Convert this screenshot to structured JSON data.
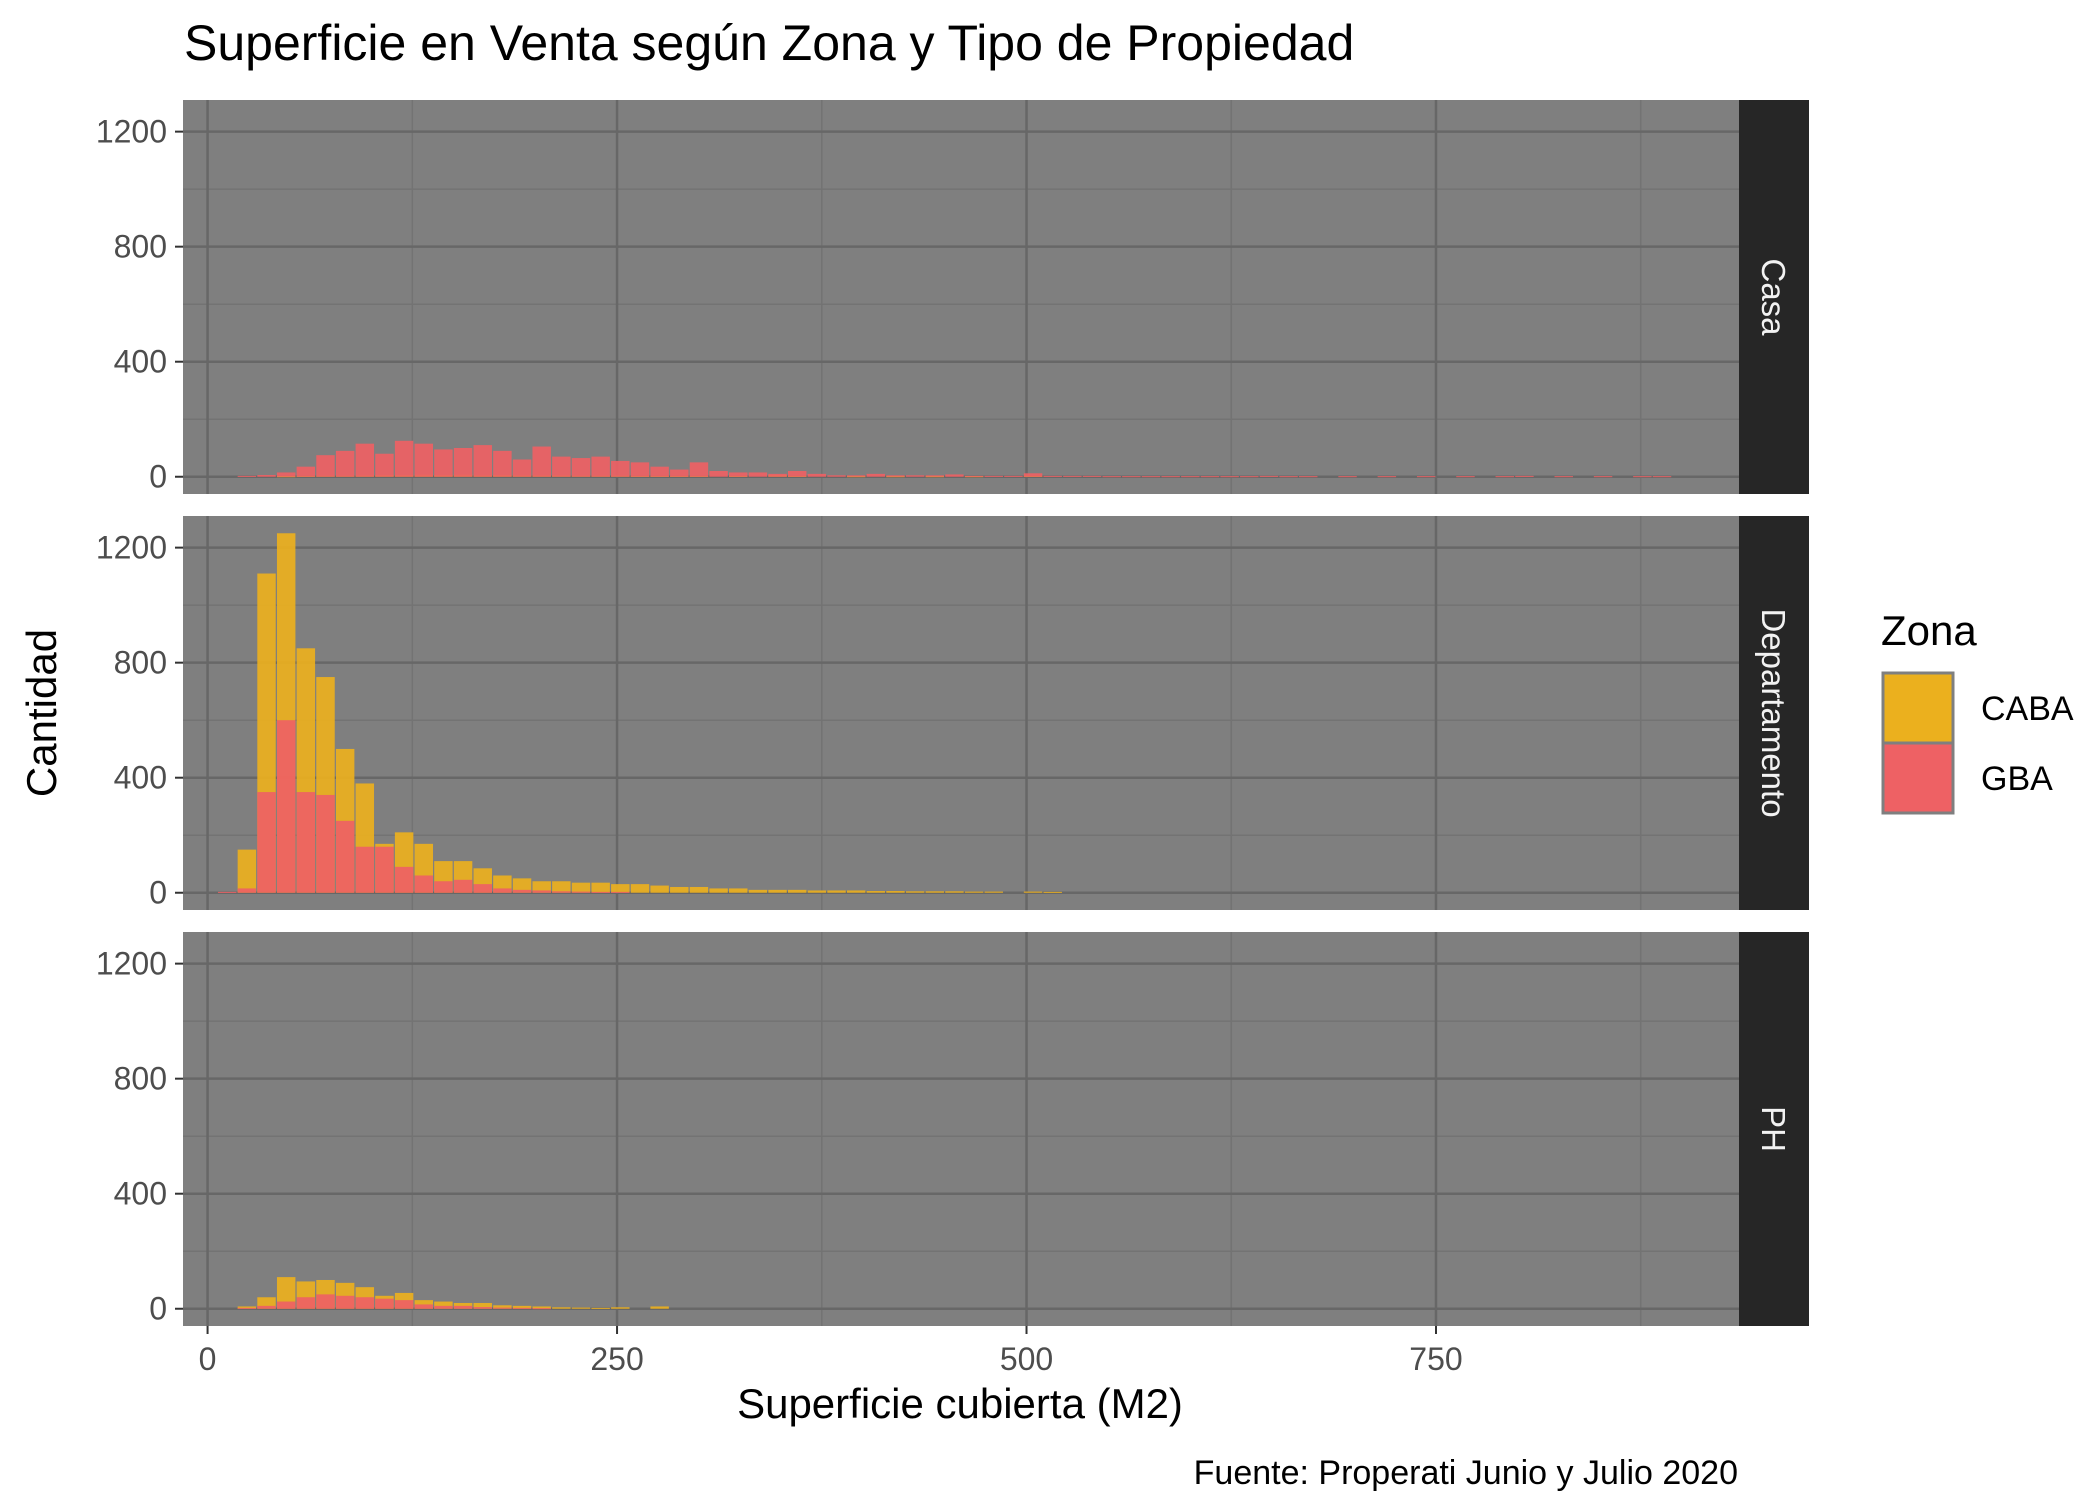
{
  "chart_data": {
    "type": "bar",
    "title": "Superficie en Venta según Zona y Tipo de Propiedad",
    "xlabel": "Superficie cubierta (M2)",
    "ylabel": "Cantidad",
    "caption": "Fuente: Properati Junio y Julio 2020",
    "xlim": [
      -15,
      935
    ],
    "ylim": [
      -60,
      1310
    ],
    "xticks": [
      0,
      250,
      500,
      750
    ],
    "yticks": [
      0,
      400,
      800,
      1200
    ],
    "bin_width": 12,
    "grid": true,
    "legend": {
      "title": "Zona",
      "position": "right",
      "entries": [
        {
          "name": "CABA",
          "color": "#EBB01E"
        },
        {
          "name": "GBA",
          "color": "#EE6164"
        }
      ]
    },
    "series_colors": {
      "CABA": "#EBB01E",
      "GBA": "#EE6164"
    },
    "panels": [
      {
        "name": "Casa",
        "series": [
          {
            "name": "CABA",
            "points": [
              [
                48,
                2
              ],
              [
                60,
                3
              ],
              [
                72,
                4
              ],
              [
                84,
                4
              ],
              [
                96,
                5
              ],
              [
                108,
                6
              ],
              [
                120,
                6
              ],
              [
                132,
                7
              ],
              [
                144,
                6
              ],
              [
                156,
                7
              ],
              [
                168,
                5
              ],
              [
                180,
                6
              ],
              [
                192,
                5
              ],
              [
                204,
                5
              ],
              [
                216,
                5
              ],
              [
                228,
                4
              ],
              [
                240,
                4
              ],
              [
                252,
                4
              ],
              [
                264,
                3
              ],
              [
                276,
                3
              ],
              [
                288,
                3
              ],
              [
                300,
                3
              ],
              [
                324,
                3
              ],
              [
                348,
                6
              ],
              [
                360,
                3
              ],
              [
                396,
                2
              ],
              [
                420,
                2
              ],
              [
                444,
                2
              ],
              [
                468,
                2
              ],
              [
                504,
                3
              ]
            ]
          },
          {
            "name": "GBA",
            "points": [
              [
                24,
                3
              ],
              [
                36,
                6
              ],
              [
                48,
                15
              ],
              [
                60,
                35
              ],
              [
                72,
                75
              ],
              [
                84,
                90
              ],
              [
                96,
                115
              ],
              [
                108,
                80
              ],
              [
                120,
                125
              ],
              [
                132,
                115
              ],
              [
                144,
                95
              ],
              [
                156,
                100
              ],
              [
                168,
                110
              ],
              [
                180,
                90
              ],
              [
                192,
                60
              ],
              [
                204,
                105
              ],
              [
                216,
                70
              ],
              [
                228,
                65
              ],
              [
                240,
                70
              ],
              [
                252,
                55
              ],
              [
                264,
                50
              ],
              [
                276,
                35
              ],
              [
                288,
                25
              ],
              [
                300,
                50
              ],
              [
                312,
                20
              ],
              [
                324,
                15
              ],
              [
                336,
                15
              ],
              [
                348,
                10
              ],
              [
                360,
                20
              ],
              [
                372,
                10
              ],
              [
                384,
                5
              ],
              [
                396,
                5
              ],
              [
                408,
                10
              ],
              [
                420,
                5
              ],
              [
                432,
                5
              ],
              [
                444,
                5
              ],
              [
                456,
                8
              ],
              [
                468,
                3
              ],
              [
                480,
                3
              ],
              [
                492,
                3
              ],
              [
                504,
                12
              ],
              [
                516,
                3
              ],
              [
                528,
                3
              ],
              [
                540,
                3
              ],
              [
                552,
                2
              ],
              [
                564,
                2
              ],
              [
                576,
                2
              ],
              [
                588,
                2
              ],
              [
                600,
                2
              ],
              [
                612,
                2
              ],
              [
                624,
                2
              ],
              [
                636,
                2
              ],
              [
                648,
                3
              ],
              [
                660,
                2
              ],
              [
                672,
                2
              ],
              [
                696,
                2
              ],
              [
                720,
                2
              ],
              [
                744,
                2
              ],
              [
                768,
                2
              ],
              [
                792,
                2
              ],
              [
                804,
                3
              ],
              [
                828,
                2
              ],
              [
                852,
                2
              ],
              [
                876,
                2
              ],
              [
                888,
                2
              ]
            ]
          }
        ]
      },
      {
        "name": "Departamento",
        "series": [
          {
            "name": "CABA",
            "points": [
              [
                24,
                150
              ],
              [
                36,
                1110
              ],
              [
                48,
                1250
              ],
              [
                60,
                850
              ],
              [
                72,
                750
              ],
              [
                84,
                500
              ],
              [
                96,
                380
              ],
              [
                108,
                170
              ],
              [
                120,
                210
              ],
              [
                132,
                170
              ],
              [
                144,
                110
              ],
              [
                156,
                110
              ],
              [
                168,
                85
              ],
              [
                180,
                60
              ],
              [
                192,
                50
              ],
              [
                204,
                40
              ],
              [
                216,
                40
              ],
              [
                228,
                35
              ],
              [
                240,
                35
              ],
              [
                252,
                30
              ],
              [
                264,
                30
              ],
              [
                276,
                25
              ],
              [
                288,
                20
              ],
              [
                300,
                20
              ],
              [
                312,
                15
              ],
              [
                324,
                15
              ],
              [
                336,
                10
              ],
              [
                348,
                10
              ],
              [
                360,
                10
              ],
              [
                372,
                8
              ],
              [
                384,
                8
              ],
              [
                396,
                8
              ],
              [
                408,
                6
              ],
              [
                420,
                6
              ],
              [
                432,
                5
              ],
              [
                444,
                5
              ],
              [
                456,
                5
              ],
              [
                468,
                4
              ],
              [
                480,
                4
              ],
              [
                504,
                4
              ],
              [
                516,
                3
              ]
            ]
          },
          {
            "name": "GBA",
            "points": [
              [
                12,
                3
              ],
              [
                24,
                15
              ],
              [
                36,
                350
              ],
              [
                48,
                600
              ],
              [
                60,
                350
              ],
              [
                72,
                340
              ],
              [
                84,
                250
              ],
              [
                96,
                160
              ],
              [
                108,
                160
              ],
              [
                120,
                90
              ],
              [
                132,
                60
              ],
              [
                144,
                40
              ],
              [
                156,
                45
              ],
              [
                168,
                30
              ],
              [
                180,
                15
              ],
              [
                192,
                10
              ],
              [
                204,
                8
              ],
              [
                216,
                5
              ],
              [
                228,
                4
              ],
              [
                240,
                3
              ],
              [
                252,
                3
              ]
            ]
          }
        ]
      },
      {
        "name": "PH",
        "series": [
          {
            "name": "CABA",
            "points": [
              [
                24,
                8
              ],
              [
                36,
                40
              ],
              [
                48,
                110
              ],
              [
                60,
                95
              ],
              [
                72,
                100
              ],
              [
                84,
                90
              ],
              [
                96,
                75
              ],
              [
                108,
                45
              ],
              [
                120,
                55
              ],
              [
                132,
                30
              ],
              [
                144,
                25
              ],
              [
                156,
                20
              ],
              [
                168,
                20
              ],
              [
                180,
                12
              ],
              [
                192,
                10
              ],
              [
                204,
                8
              ],
              [
                216,
                5
              ],
              [
                228,
                4
              ],
              [
                240,
                3
              ],
              [
                252,
                5
              ],
              [
                276,
                8
              ]
            ]
          },
          {
            "name": "GBA",
            "points": [
              [
                24,
                3
              ],
              [
                36,
                10
              ],
              [
                48,
                25
              ],
              [
                60,
                40
              ],
              [
                72,
                50
              ],
              [
                84,
                45
              ],
              [
                96,
                40
              ],
              [
                108,
                35
              ],
              [
                120,
                30
              ],
              [
                132,
                15
              ],
              [
                144,
                10
              ],
              [
                156,
                10
              ],
              [
                168,
                6
              ],
              [
                180,
                4
              ],
              [
                192,
                3
              ],
              [
                204,
                2
              ]
            ]
          }
        ]
      }
    ]
  }
}
